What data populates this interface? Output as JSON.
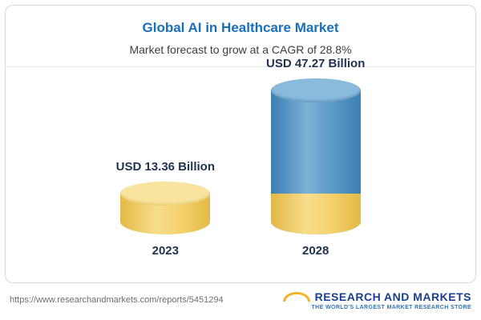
{
  "chart_data": {
    "type": "bar",
    "title": "Global AI in Healthcare Market",
    "subtitle": "Market forecast to grow at a CAGR of 28.8%",
    "categories": [
      "2023",
      "2028"
    ],
    "values": [
      13.36,
      47.27
    ],
    "value_labels": [
      "USD 13.36 Billion",
      "USD 47.27 Billion"
    ],
    "unit": "USD Billion",
    "ylim": [
      0,
      50
    ],
    "grid": false,
    "legend": false,
    "colors": {
      "bar_2023": "#F2CF5B",
      "bar_2028": "#4D8FC4",
      "bar_2028_base": "#F2CF5B",
      "title": "#1A6FBA"
    }
  },
  "footer": {
    "url": "https://www.researchandmarkets.com/reports/5451294",
    "logo_text": "RESEARCH AND MARKETS",
    "logo_tagline": "THE WORLD'S LARGEST MARKET RESEARCH STORE"
  }
}
